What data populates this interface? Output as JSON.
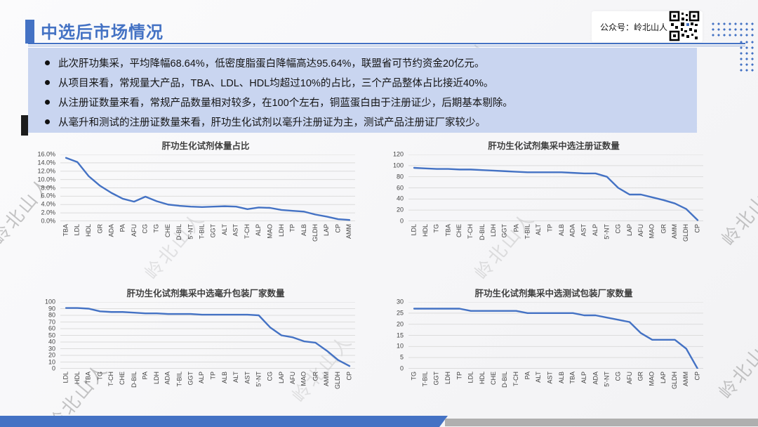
{
  "header": {
    "title": "中选后市场情况",
    "wechat_label": "公众号：岭北山人"
  },
  "bullets": [
    "此次肝功集采，平均降幅68.64%，低密度脂蛋白降幅高达95.64%，联盟省可节约资金20亿元。",
    "从项目来看，常规量大产品，TBA、LDL、HDL均超过10%的占比，三个产品整体占比接近40%。",
    "从注册证数量来看，常规产品数量相对较多，在100个左右，铜蓝蛋白由于注册证少，后期基本剔除。",
    "从毫升和测试的注册证数量来看，肝功生化试剂以毫升注册证为主，测试产品注册证厂家较少。"
  ],
  "watermark": "岭北山人",
  "colors": {
    "accent": "#4472C4",
    "line": "#4472C4",
    "bullet_box_bg": "#C9D5F0",
    "bottom_gray_bar": "#AFAFAF",
    "gridline": "#DCDCDC"
  },
  "chart_data": [
    {
      "type": "line",
      "title": "肝功生化试剂体量占比",
      "categories": [
        "TBA",
        "LDL",
        "HDL",
        "GR",
        "ADA",
        "PA",
        "AFU",
        "CG",
        "TG",
        "CHE",
        "D-BIL",
        "5'-NT",
        "T-BIL",
        "GGT",
        "ALT",
        "AST",
        "T-CH",
        "ALP",
        "MAO",
        "LDH",
        "TP",
        "ALB",
        "GLDH",
        "LAP",
        "CP",
        "AMM"
      ],
      "values": [
        15.2,
        14.2,
        10.8,
        8.5,
        6.8,
        5.4,
        4.7,
        5.9,
        4.8,
        4.0,
        3.7,
        3.5,
        3.4,
        3.5,
        3.6,
        3.5,
        2.9,
        3.3,
        3.2,
        2.7,
        2.5,
        2.3,
        1.6,
        1.1,
        0.5,
        0.3
      ],
      "ylim": [
        0,
        16
      ],
      "ystep": 2,
      "tick_format": "percent",
      "grid": true,
      "legend": "none",
      "xlabel": "",
      "ylabel": ""
    },
    {
      "type": "line",
      "title": "肝功生化试剂集采中选注册证数量",
      "categories": [
        "LDL",
        "HDL",
        "TG",
        "TBA",
        "CHE",
        "T-CH",
        "D-BIL",
        "LDH",
        "GGT",
        "PA",
        "T-BIL",
        "ALT",
        "TP",
        "ALB",
        "ADA",
        "AST",
        "ALP",
        "5'-NT",
        "CG",
        "LAP",
        "AFU",
        "MAO",
        "GR",
        "AMM",
        "GLDH",
        "CP"
      ],
      "values": [
        96,
        95,
        94,
        94,
        93,
        93,
        92,
        91,
        90,
        89,
        88,
        88,
        88,
        88,
        87,
        86,
        86,
        80,
        60,
        48,
        48,
        43,
        38,
        32,
        22,
        2
      ],
      "ylim": [
        0,
        120
      ],
      "ystep": 20,
      "tick_format": "number",
      "grid": true,
      "legend": "none",
      "xlabel": "",
      "ylabel": ""
    },
    {
      "type": "line",
      "title": "肝功生化试剂集采中选毫升包装厂家数量",
      "categories": [
        "LDL",
        "HDL",
        "TBA",
        "TG",
        "T-CH",
        "CHE",
        "D-BIL",
        "PA",
        "LDH",
        "ADA",
        "T-BIL",
        "GGT",
        "ALP",
        "TP",
        "ALB",
        "ALT",
        "AST",
        "5'-NT",
        "CG",
        "LAP",
        "AFU",
        "MAO",
        "GR",
        "AMM",
        "GLDH",
        "CP"
      ],
      "values": [
        91,
        91,
        90,
        86,
        85,
        85,
        84,
        83,
        83,
        82,
        82,
        82,
        81,
        81,
        81,
        81,
        81,
        80,
        62,
        50,
        47,
        41,
        39,
        27,
        13,
        4
      ],
      "ylim": [
        0,
        100
      ],
      "ystep": 10,
      "tick_format": "number",
      "grid": true,
      "legend": "none",
      "xlabel": "",
      "ylabel": ""
    },
    {
      "type": "line",
      "title": "肝功生化试剂集采中选测试包装厂家数量",
      "categories": [
        "TG",
        "T-BIL",
        "GGT",
        "LDH",
        "TP",
        "LDL",
        "HDL",
        "CHE",
        "D-BIL",
        "T-CH",
        "PA",
        "ALT",
        "AST",
        "ALB",
        "TBA",
        "ALP",
        "ADA",
        "5'-NT",
        "CG",
        "AFU",
        "GR",
        "MAO",
        "LAP",
        "GLDH",
        "AMM",
        "CP"
      ],
      "values": [
        27,
        27,
        27,
        27,
        27,
        26,
        26,
        26,
        26,
        26,
        25,
        25,
        25,
        25,
        25,
        24,
        24,
        23,
        22,
        21,
        16,
        13,
        13,
        13,
        9,
        0
      ],
      "ylim": [
        0,
        30
      ],
      "ystep": 5,
      "tick_format": "number",
      "grid": true,
      "legend": "none",
      "xlabel": "",
      "ylabel": ""
    }
  ]
}
